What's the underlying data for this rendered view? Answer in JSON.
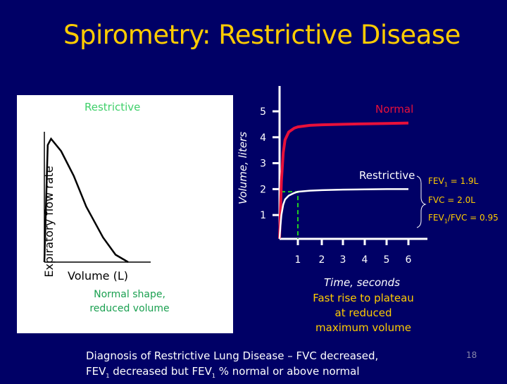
{
  "slide": {
    "title": "Spirometry:  Restrictive Disease",
    "page_number": "18",
    "footer_line1": "Diagnosis of  Restrictive Lung Disease – FVC decreased,",
    "footer_line2_a": "FEV",
    "footer_line2_sub1": "1",
    "footer_line2_b": " decreased but FEV",
    "footer_line2_sub2": "1",
    "footer_line2_c": " % normal or above normal",
    "colors": {
      "background": "#000066",
      "title": "#FFCC00",
      "normal": "#E8103A",
      "restrictive": "#FFFFFF",
      "guide": "#22CC22"
    }
  },
  "chart_data": [
    {
      "type": "line",
      "title": "Restrictive",
      "xlabel": "Volume (L)",
      "ylabel": "Expiratory flow rate",
      "caption": [
        "Normal shape,",
        "reduced volume"
      ],
      "series": [
        {
          "values_xy": [
            [
              0,
              0
            ],
            [
              0.04,
              0.95
            ],
            [
              0.08,
              1.0
            ],
            [
              0.2,
              0.9
            ],
            [
              0.35,
              0.7
            ],
            [
              0.5,
              0.45
            ],
            [
              0.7,
              0.2
            ],
            [
              0.85,
              0.06
            ],
            [
              1,
              0
            ]
          ]
        }
      ]
    },
    {
      "type": "line",
      "xlabel": "Time, seconds",
      "ylabel": "Volume, liters",
      "x_ticks": [
        "1",
        "2",
        "3",
        "4",
        "5",
        "6"
      ],
      "y_ticks": [
        "1",
        "2",
        "3",
        "4",
        "5"
      ],
      "caption": [
        "Fast rise to plateau",
        "at reduced",
        "maximum volume"
      ],
      "series": [
        {
          "name": "Normal",
          "color": "#E8103A",
          "x": [
            0,
            0.05,
            0.1,
            0.2,
            0.3,
            0.5,
            0.8,
            1,
            1.5,
            2,
            3,
            4,
            5,
            6
          ],
          "y": [
            0.1,
            1.2,
            2.3,
            3.4,
            3.9,
            4.2,
            4.35,
            4.4,
            4.46,
            4.48,
            4.5,
            4.52,
            4.53,
            4.55
          ]
        },
        {
          "name": "Restrictive",
          "color": "#FFFFFF",
          "x": [
            0,
            0.05,
            0.1,
            0.2,
            0.3,
            0.5,
            0.8,
            1,
            1.5,
            2,
            3,
            4,
            5,
            6
          ],
          "y": [
            0.1,
            0.6,
            1.0,
            1.4,
            1.6,
            1.75,
            1.85,
            1.9,
            1.94,
            1.96,
            1.98,
            1.99,
            2.0,
            2.0
          ]
        }
      ],
      "annotation": {
        "fev1_time": 1,
        "fev1_volume": 1.9
      },
      "stats": {
        "fev1_label": "FEV",
        "fev1_sub": "1",
        "fev1_value": " = 1.9L",
        "fvc": "FVC = 2.0L",
        "ratio_label": "FEV",
        "ratio_sub": "1",
        "ratio_value": "/FVC = 0.95"
      }
    }
  ]
}
